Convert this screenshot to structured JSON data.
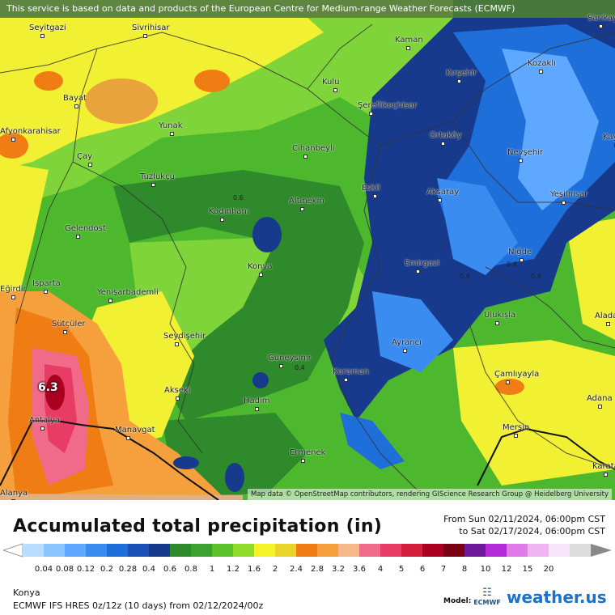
{
  "banner": "This service is based on data and products of the European Centre for Medium-range Weather Forecasts (ECMWF)",
  "attribution": "Map data © OpenStreetMap contributors, rendering GIScience Research Group @ Heidelberg University",
  "map": {
    "max_value_label": "6.3",
    "small_values": [
      "0.6",
      "0.4",
      "0.4",
      "0.4",
      "0.4"
    ],
    "cities": [
      "Seyitgazi",
      "Sivrihisar",
      "Kaman",
      "Sarıkaya",
      "Kozaklı",
      "Kulu",
      "Kırşehir",
      "Bayat",
      "Şereflikoçhisar",
      "Afyonkarahisar",
      "Yunak",
      "Ortaköy",
      "Kayseri",
      "Çay",
      "Cihanbeyli",
      "Nevşehir",
      "Tuzlukçu",
      "Eskil",
      "Kadınhanı",
      "Altınekin",
      "Aksaray",
      "Yeşilhisar",
      "Gelendost",
      "Niğde",
      "Konya",
      "Emirgazi",
      "Isparta",
      "Yenişarbademli",
      "Ulukışla",
      "Aladağ",
      "Sütçüler",
      "Seydişehir",
      "Ayrancı",
      "Güneysınır",
      "Karaman",
      "Çamlıyayla",
      "Akseki",
      "Hadim",
      "Adana",
      "Antalya",
      "Manavgat",
      "Mersin",
      "Ermenek",
      "Karataş",
      "Eğirdir",
      "Alanya"
    ]
  },
  "header": {
    "title": "Accumulated total precipitation (in)",
    "from": "From Sun 02/11/2024, 06:00pm CST",
    "to": "to Sat 02/17/2024, 06:00pm CST"
  },
  "legend": {
    "ticks": [
      "0.04",
      "0.08",
      "0.12",
      "0.2",
      "0.28",
      "0.4",
      "0.6",
      "0.8",
      "1",
      "1.2",
      "1.6",
      "2",
      "2.4",
      "2.8",
      "3.2",
      "3.6",
      "4",
      "5",
      "6",
      "7",
      "8",
      "10",
      "12",
      "15",
      "20"
    ],
    "colors": [
      "#b9dcff",
      "#8cc4ff",
      "#5fa8ff",
      "#3b8cf0",
      "#1f6fdb",
      "#1a4fb4",
      "#173a8c",
      "#2e8a2a",
      "#3da330",
      "#5cc22c",
      "#8fdc2a",
      "#f3f32a",
      "#e8d42a",
      "#f07d14",
      "#f5a03c",
      "#f7b98a",
      "#f06a8a",
      "#e83c64",
      "#d41e3c",
      "#a8001e",
      "#7a0014",
      "#6c1a9a",
      "#b42ad8",
      "#e07ae8",
      "#f0b4f0",
      "#f8e4f8",
      "#dcdcdc"
    ]
  },
  "footer": {
    "location": "Konya",
    "model_run": "ECMWF IFS HRES 0z/12z (10 days) from 02/12/2024/00z",
    "model_label": "Model:",
    "ecmwf": "ECMWF",
    "brand": "weather.us"
  }
}
